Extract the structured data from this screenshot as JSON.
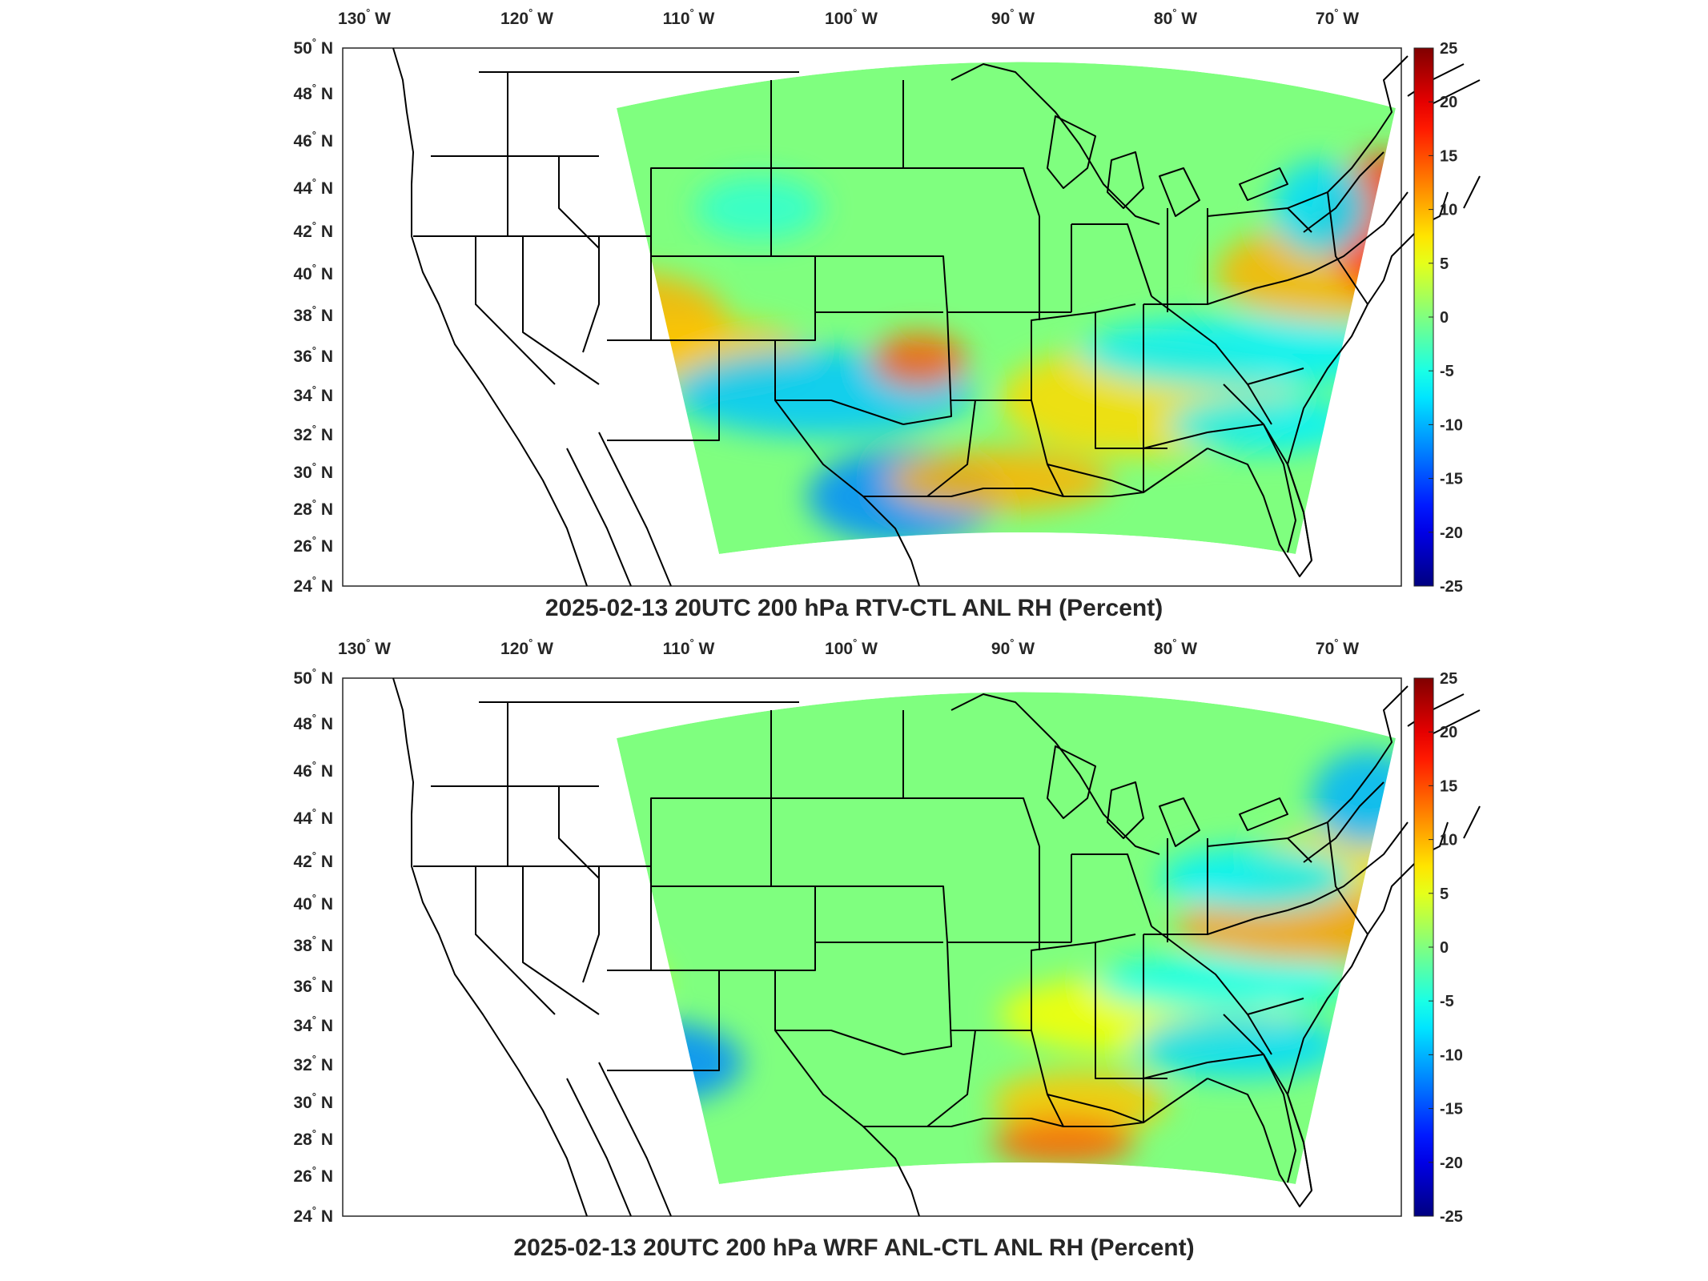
{
  "figure": {
    "colorbar": {
      "ticks": [
        25,
        20,
        15,
        10,
        5,
        0,
        -5,
        -10,
        -15,
        -20,
        -25
      ],
      "range": [
        -25,
        25
      ],
      "colormap": "jet"
    },
    "lon_labels": [
      "130",
      "120",
      "110",
      "100",
      "90",
      "80",
      "70"
    ],
    "lon_suffix": "W",
    "lat_labels": [
      "50",
      "48",
      "46",
      "44",
      "42",
      "40",
      "38",
      "36",
      "34",
      "32",
      "30",
      "28",
      "26",
      "24"
    ],
    "lat_suffix": "N",
    "degree_symbol": "°",
    "panels": [
      {
        "id": "top",
        "title": "2025-02-13 20UTC 200 hPa RTV-CTL ANL RH (Percent)"
      },
      {
        "id": "bottom",
        "title": "2025-02-13 20UTC 200 hPa WRF ANL-CTL ANL RH (Percent)"
      }
    ]
  },
  "colors": {
    "jet_max": "#800000",
    "jet_min": "#00008f",
    "field_neutral": "#7fff7f",
    "outline": "#000000",
    "text": "#262626"
  }
}
